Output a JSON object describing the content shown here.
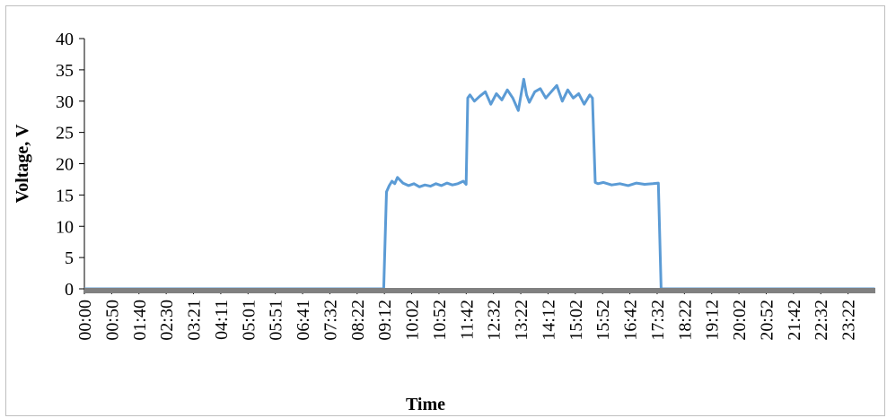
{
  "chart_data": {
    "type": "line",
    "title": "",
    "xlabel": "Time",
    "ylabel": "Voltage, V",
    "ylim": [
      0,
      40
    ],
    "yticks": [
      0,
      5,
      10,
      15,
      20,
      25,
      30,
      35,
      40
    ],
    "grid": false,
    "legend": "none",
    "line_color": "#5b9bd5",
    "baseline_color": "#808080",
    "x_tick_labels": [
      "00:00",
      "00:50",
      "01:40",
      "02:30",
      "03:21",
      "04:11",
      "05:01",
      "05:51",
      "06:41",
      "07:32",
      "08:22",
      "09:12",
      "10:02",
      "10:52",
      "11:42",
      "12:32",
      "13:22",
      "14:12",
      "15:02",
      "15:52",
      "16:42",
      "17:32",
      "18:22",
      "19:12",
      "20:02",
      "20:52",
      "21:42",
      "22:32",
      "23:22"
    ],
    "series": [
      {
        "x": [
          "00:00",
          "08:22",
          "09:05",
          "09:10",
          "09:15",
          "09:20",
          "09:25",
          "09:30",
          "09:40",
          "09:50",
          "10:00",
          "10:10",
          "10:20",
          "10:30",
          "10:40",
          "10:50",
          "11:00",
          "11:10",
          "11:20",
          "11:30",
          "11:35",
          "11:38",
          "11:42",
          "11:50",
          "12:00",
          "12:10",
          "12:20",
          "12:30",
          "12:40",
          "12:50",
          "13:00",
          "13:10",
          "13:20",
          "13:25",
          "13:30",
          "13:40",
          "13:50",
          "14:00",
          "14:10",
          "14:20",
          "14:30",
          "14:40",
          "14:50",
          "15:00",
          "15:10",
          "15:20",
          "15:25",
          "15:30",
          "15:35",
          "15:45",
          "16:00",
          "16:15",
          "16:30",
          "16:45",
          "17:00",
          "17:15",
          "17:25",
          "17:30",
          "17:35",
          "23:59"
        ],
        "y": [
          0,
          0,
          0,
          15.5,
          16.5,
          17.2,
          16.8,
          17.8,
          16.9,
          16.5,
          16.8,
          16.3,
          16.6,
          16.4,
          16.8,
          16.5,
          16.9,
          16.6,
          16.8,
          17.2,
          16.7,
          30.5,
          31.0,
          30.0,
          30.8,
          31.5,
          29.5,
          31.2,
          30.2,
          31.8,
          30.5,
          28.5,
          33.5,
          31.0,
          29.8,
          31.5,
          32.0,
          30.5,
          31.5,
          32.5,
          30.0,
          31.8,
          30.5,
          31.2,
          29.5,
          31.0,
          30.5,
          17.0,
          16.8,
          17.0,
          16.6,
          16.8,
          16.5,
          16.9,
          16.7,
          16.8,
          16.9,
          0,
          0,
          0
        ]
      }
    ]
  }
}
